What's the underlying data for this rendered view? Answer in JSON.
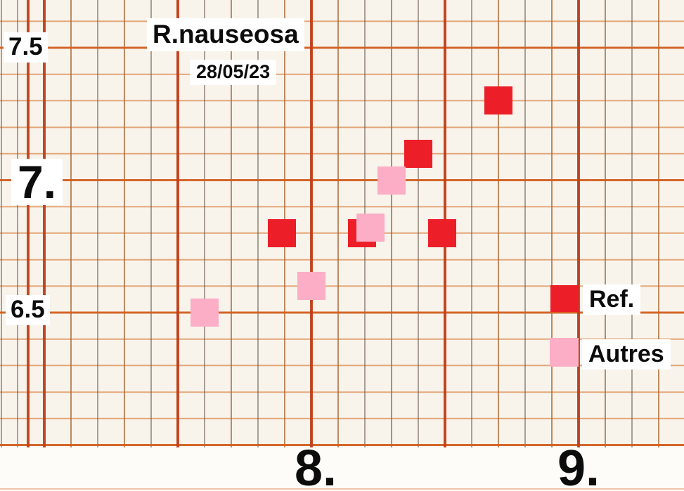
{
  "chart": {
    "title": "R.nauseosa",
    "date": "28/05/23"
  },
  "y_axis": {
    "ticks": [
      {
        "label": "7.5",
        "value": 7.5
      },
      {
        "label": "7.",
        "value": 7.0
      },
      {
        "label": "6.5",
        "value": 6.5
      }
    ]
  },
  "x_axis": {
    "ticks": [
      {
        "label": "8.",
        "value": 8.0
      },
      {
        "label": "9.",
        "value": 9.0
      }
    ]
  },
  "legend": {
    "items": [
      {
        "label": "Ref.",
        "color": "#ec1f28"
      },
      {
        "label": "Autres",
        "color": "#fbaec6"
      }
    ]
  },
  "colors": {
    "ref_red": "#ec1f28",
    "autres_pink": "#fbaec6",
    "paper": "#f8f4ec",
    "grid_major_vertical": "#c13e18",
    "grid_major_horizontal": "#d25e20",
    "grid_minor_horizontal": "#d87e3c",
    "grid_minor_vertical": "#6f5a4c",
    "text": "#0c0c0c"
  },
  "chart_data": {
    "type": "scatter",
    "title": "R.nauseosa",
    "subtitle": "28/05/23",
    "marker": "square",
    "grid": "graph-paper",
    "legend_position": "right-middle",
    "xlim": [
      6.83,
      9.4
    ],
    "ylim": [
      6.0,
      7.68
    ],
    "x_tick_values": [
      8.0,
      9.0
    ],
    "y_tick_values": [
      6.5,
      7.0,
      7.5
    ],
    "series": [
      {
        "name": "Ref.",
        "color": "#ec1f28",
        "points": [
          [
            7.89,
            6.8
          ],
          [
            8.19,
            6.8
          ],
          [
            8.4,
            7.1
          ],
          [
            8.49,
            6.8
          ],
          [
            8.7,
            7.3
          ]
        ]
      },
      {
        "name": "Autres",
        "color": "#fbaec6",
        "points": [
          [
            7.6,
            6.5
          ],
          [
            8.0,
            6.6
          ],
          [
            8.22,
            6.82
          ],
          [
            8.3,
            7.0
          ]
        ]
      }
    ]
  }
}
